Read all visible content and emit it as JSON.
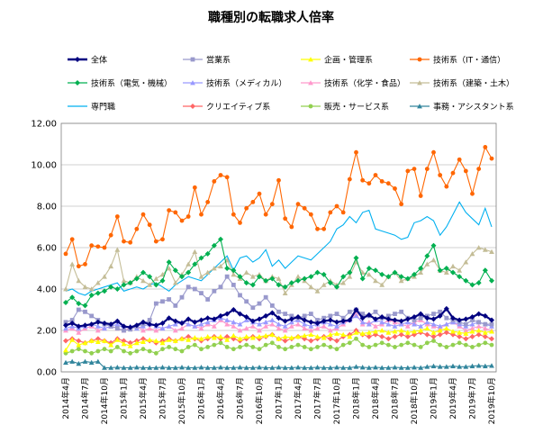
{
  "chart_data": {
    "type": "line",
    "title": "職種別の転職求人倍率",
    "xlabel": "",
    "ylabel": "",
    "ylim": [
      0,
      12
    ],
    "yticks": [
      "0.00",
      "2.00",
      "4.00",
      "6.00",
      "8.00",
      "10.00",
      "12.00"
    ],
    "grid": true,
    "legend_position": "top",
    "x": [
      "2014年4月",
      "2014年5月",
      "2014年6月",
      "2014年7月",
      "2014年8月",
      "2014年9月",
      "2014年10月",
      "2014年11月",
      "2014年12月",
      "2015年1月",
      "2015年2月",
      "2015年3月",
      "2015年4月",
      "2015年5月",
      "2015年6月",
      "2015年7月",
      "2015年8月",
      "2015年9月",
      "2015年10月",
      "2015年11月",
      "2015年12月",
      "2016年1月",
      "2016年2月",
      "2016年3月",
      "2016年4月",
      "2016年5月",
      "2016年6月",
      "2016年7月",
      "2016年8月",
      "2016年9月",
      "2016年10月",
      "2016年11月",
      "2016年12月",
      "2017年1月",
      "2017年2月",
      "2017年3月",
      "2017年4月",
      "2017年5月",
      "2017年6月",
      "2017年7月",
      "2017年8月",
      "2017年9月",
      "2017年10月",
      "2017年11月",
      "2017年12月",
      "2018年1月",
      "2018年2月",
      "2018年3月",
      "2018年4月",
      "2018年5月",
      "2018年6月",
      "2018年7月",
      "2018年8月",
      "2018年9月",
      "2018年10月",
      "2018年11月",
      "2018年12月",
      "2019年1月",
      "2019年2月",
      "2019年3月",
      "2019年4月",
      "2019年5月",
      "2019年6月",
      "2019年7月",
      "2019年8月",
      "2019年9月",
      "2019年10月"
    ],
    "x_tick_labels": [
      "2014年4月",
      "2014年7月",
      "2014年10月",
      "2015年1月",
      "2015年4月",
      "2015年7月",
      "2015年10月",
      "2016年1月",
      "2016年4月",
      "2016年7月",
      "2016年10月",
      "2017年1月",
      "2017年4月",
      "2017年7月",
      "2017年10月",
      "2018年1月",
      "2018年4月",
      "2018年7月",
      "2018年10月",
      "2019年1月",
      "2019年4月",
      "2019年7月",
      "2019年10月"
    ],
    "series": [
      {
        "name": "全体",
        "color": "#000080",
        "marker": "diamond",
        "width": 2.2,
        "values": [
          2.25,
          2.35,
          2.2,
          2.25,
          2.3,
          2.4,
          2.35,
          2.3,
          2.45,
          2.2,
          2.15,
          2.25,
          2.4,
          2.3,
          2.25,
          2.35,
          2.6,
          2.45,
          2.35,
          2.55,
          2.4,
          2.5,
          2.6,
          2.55,
          2.7,
          2.8,
          3.0,
          2.8,
          2.65,
          2.45,
          2.55,
          2.7,
          2.85,
          2.6,
          2.45,
          2.55,
          2.65,
          2.5,
          2.4,
          2.35,
          2.45,
          2.5,
          2.4,
          2.45,
          2.5,
          3.0,
          2.6,
          2.75,
          2.55,
          2.65,
          2.55,
          2.5,
          2.45,
          2.55,
          2.65,
          2.8,
          2.6,
          2.55,
          2.7,
          3.05,
          2.6,
          2.5,
          2.55,
          2.65,
          2.8,
          2.7,
          2.5
        ]
      },
      {
        "name": "営業系",
        "color": "#9999cc",
        "marker": "square",
        "width": 1,
        "values": [
          2.4,
          2.5,
          3.0,
          2.9,
          2.7,
          2.5,
          2.3,
          2.2,
          2.1,
          2.0,
          2.05,
          2.2,
          2.3,
          2.5,
          3.3,
          3.4,
          3.5,
          3.2,
          3.6,
          4.1,
          4.0,
          3.8,
          3.5,
          3.9,
          4.1,
          4.6,
          4.2,
          3.7,
          3.4,
          3.1,
          3.3,
          3.6,
          3.2,
          2.9,
          2.8,
          2.7,
          2.6,
          2.7,
          2.8,
          2.5,
          2.6,
          2.7,
          2.8,
          2.6,
          2.9,
          3.0,
          2.8,
          2.7,
          2.9,
          2.6,
          2.7,
          2.8,
          2.9,
          2.6,
          2.5,
          2.6,
          2.7,
          2.8,
          2.9,
          2.6,
          2.5,
          2.4,
          2.3,
          2.5,
          2.4,
          2.3,
          2.3
        ]
      },
      {
        "name": "企画・管理系",
        "color": "#ffff00",
        "marker": "triangle",
        "width": 1,
        "values": [
          1.05,
          1.55,
          1.3,
          1.4,
          1.5,
          1.45,
          1.5,
          1.3,
          1.55,
          1.35,
          1.25,
          1.4,
          1.45,
          1.55,
          1.5,
          1.4,
          1.55,
          1.5,
          1.6,
          1.55,
          1.65,
          1.6,
          1.7,
          1.65,
          1.7,
          1.55,
          1.75,
          1.6,
          1.7,
          1.65,
          1.7,
          1.75,
          1.8,
          1.6,
          1.7,
          1.65,
          1.7,
          1.75,
          1.8,
          1.7,
          1.65,
          1.8,
          1.85,
          1.8,
          1.7,
          1.9,
          1.85,
          1.9,
          1.95,
          2.0,
          1.9,
          1.95,
          2.0,
          1.9,
          1.95,
          2.0,
          2.1,
          1.9,
          2.0,
          2.1,
          1.95,
          1.9,
          1.85,
          1.95,
          2.0,
          1.9,
          1.95
        ]
      },
      {
        "name": "技術系（IT・通信）",
        "color": "#ff6600",
        "marker": "circle",
        "width": 1,
        "values": [
          5.7,
          6.4,
          5.1,
          5.2,
          6.1,
          6.05,
          6.0,
          6.6,
          7.5,
          6.3,
          6.25,
          6.9,
          7.6,
          7.1,
          6.3,
          6.4,
          7.8,
          7.7,
          7.3,
          7.5,
          8.9,
          7.6,
          8.2,
          9.2,
          9.5,
          9.4,
          7.6,
          7.2,
          7.9,
          8.2,
          8.6,
          7.6,
          8.1,
          9.25,
          7.4,
          7.0,
          8.1,
          7.9,
          7.6,
          6.9,
          6.9,
          7.7,
          8.0,
          7.7,
          9.3,
          10.6,
          9.25,
          9.1,
          9.5,
          9.2,
          9.1,
          8.85,
          8.1,
          9.7,
          9.8,
          8.5,
          9.8,
          10.6,
          9.5,
          8.95,
          9.6,
          10.25,
          9.7,
          8.6,
          9.8,
          10.85,
          10.3
        ]
      },
      {
        "name": "技術系（電気・機械）",
        "color": "#00b050",
        "marker": "diamond",
        "width": 1,
        "values": [
          3.35,
          3.6,
          3.3,
          3.2,
          3.7,
          3.8,
          3.9,
          4.1,
          4.0,
          4.2,
          4.3,
          4.5,
          4.8,
          4.6,
          4.2,
          4.4,
          5.3,
          4.9,
          4.6,
          4.8,
          5.2,
          5.5,
          5.7,
          6.1,
          6.4,
          5.0,
          4.9,
          4.6,
          4.3,
          4.2,
          4.6,
          4.4,
          4.5,
          4.2,
          4.1,
          4.3,
          4.4,
          4.5,
          4.6,
          4.8,
          4.7,
          4.3,
          4.1,
          4.6,
          4.8,
          5.5,
          4.5,
          5.0,
          4.9,
          4.7,
          4.6,
          4.8,
          4.6,
          4.5,
          4.7,
          5.0,
          5.6,
          6.1,
          4.9,
          5.0,
          4.8,
          4.6,
          4.4,
          4.2,
          4.3,
          4.9,
          4.4
        ]
      },
      {
        "name": "技術系（メディカル）",
        "color": "#9999ff",
        "marker": "triangle",
        "width": 1,
        "values": [
          2.1,
          2.2,
          2.1,
          2.2,
          2.3,
          2.2,
          2.1,
          2.2,
          2.3,
          2.1,
          2.2,
          2.1,
          2.2,
          2.3,
          2.2,
          2.1,
          2.2,
          2.3,
          2.4,
          2.3,
          2.2,
          2.3,
          2.4,
          2.5,
          2.6,
          2.5,
          2.4,
          2.3,
          2.5,
          2.4,
          2.3,
          2.4,
          2.5,
          2.3,
          2.2,
          2.4,
          2.5,
          2.3,
          2.2,
          2.3,
          2.4,
          2.3,
          2.2,
          2.4,
          2.5,
          2.7,
          2.4,
          2.3,
          2.5,
          2.4,
          2.3,
          2.2,
          2.3,
          2.4,
          2.3,
          2.2,
          2.4,
          2.3,
          2.2,
          2.3,
          2.4,
          2.3,
          2.2,
          2.3,
          2.4,
          2.3,
          2.2
        ]
      },
      {
        "name": "技術系（化学・食品）",
        "color": "#ff99cc",
        "marker": "triangle",
        "width": 1,
        "values": [
          2.0,
          2.1,
          1.9,
          2.1,
          2.2,
          2.0,
          2.1,
          2.2,
          2.1,
          2.0,
          2.1,
          2.2,
          2.0,
          2.1,
          2.0,
          2.1,
          2.2,
          2.0,
          2.1,
          2.3,
          2.2,
          2.1,
          2.3,
          2.2,
          2.5,
          2.3,
          2.2,
          2.0,
          2.1,
          2.2,
          2.0,
          2.2,
          2.3,
          2.1,
          2.0,
          2.2,
          2.3,
          2.1,
          2.0,
          2.1,
          2.2,
          2.0,
          2.1,
          2.3,
          2.5,
          2.8,
          2.3,
          2.4,
          2.2,
          2.3,
          2.5,
          2.4,
          2.3,
          2.2,
          2.4,
          2.5,
          2.3,
          2.2,
          2.1,
          2.3,
          2.4,
          2.2,
          2.0,
          2.1,
          2.2,
          2.1,
          2.0
        ]
      },
      {
        "name": "技術系（建築・土木）",
        "color": "#c4bd97",
        "marker": "triangle",
        "width": 1,
        "values": [
          4.0,
          5.2,
          4.4,
          4.1,
          4.0,
          4.3,
          4.6,
          5.1,
          5.9,
          4.4,
          4.3,
          4.6,
          4.4,
          4.2,
          4.5,
          4.7,
          5.0,
          4.3,
          4.7,
          5.2,
          5.8,
          4.6,
          4.8,
          5.0,
          5.1,
          5.4,
          4.7,
          4.5,
          4.8,
          4.6,
          4.7,
          4.4,
          4.6,
          4.5,
          3.8,
          4.2,
          4.6,
          4.4,
          4.1,
          3.9,
          4.2,
          4.4,
          4.2,
          4.3,
          4.6,
          5.3,
          4.8,
          4.7,
          4.4,
          4.2,
          4.6,
          4.8,
          4.4,
          4.5,
          4.6,
          4.8,
          5.2,
          5.4,
          4.9,
          4.8,
          5.1,
          4.9,
          5.3,
          5.7,
          6.0,
          5.9,
          5.8
        ]
      },
      {
        "name": "専門職",
        "color": "#00b0f0",
        "marker": "line",
        "width": 1,
        "values": [
          3.9,
          4.0,
          3.8,
          3.7,
          3.9,
          4.0,
          4.1,
          4.2,
          4.3,
          3.9,
          4.0,
          4.1,
          4.0,
          4.2,
          4.3,
          4.1,
          3.9,
          4.2,
          4.4,
          4.6,
          4.5,
          4.4,
          4.7,
          5.0,
          5.3,
          5.6,
          4.9,
          5.5,
          5.6,
          5.3,
          5.5,
          5.9,
          5.1,
          5.4,
          5.0,
          5.3,
          5.6,
          5.5,
          5.4,
          5.7,
          6.0,
          6.3,
          6.9,
          7.1,
          7.5,
          7.2,
          7.7,
          7.8,
          6.9,
          6.8,
          6.7,
          6.6,
          6.4,
          6.5,
          7.2,
          7.3,
          7.5,
          7.3,
          6.6,
          7.0,
          7.6,
          8.2,
          7.7,
          7.4,
          7.1,
          7.9,
          7.0
        ]
      },
      {
        "name": "クリエイティブ系",
        "color": "#ff6666",
        "marker": "diamond",
        "width": 1,
        "values": [
          1.5,
          1.6,
          1.5,
          1.4,
          1.5,
          1.6,
          1.5,
          1.4,
          1.6,
          1.5,
          1.4,
          1.5,
          1.6,
          1.5,
          1.4,
          1.5,
          1.6,
          1.5,
          1.6,
          1.7,
          1.6,
          1.5,
          1.6,
          1.7,
          1.6,
          1.7,
          1.6,
          1.5,
          1.6,
          1.7,
          1.6,
          1.7,
          1.8,
          1.6,
          1.5,
          1.6,
          1.7,
          1.6,
          1.5,
          1.6,
          1.7,
          1.6,
          1.5,
          1.7,
          1.8,
          2.0,
          1.8,
          1.7,
          1.8,
          1.7,
          1.6,
          1.7,
          1.8,
          1.7,
          1.8,
          1.9,
          1.8,
          1.7,
          1.8,
          1.9,
          1.8,
          1.7,
          1.6,
          1.7,
          1.8,
          1.7,
          1.6
        ]
      },
      {
        "name": "販売・サービス系",
        "color": "#92d050",
        "marker": "circle",
        "width": 1,
        "values": [
          0.9,
          1.0,
          1.1,
          1.0,
          0.9,
          1.0,
          1.1,
          1.0,
          1.2,
          1.0,
          0.9,
          1.0,
          1.1,
          1.0,
          0.9,
          1.1,
          1.2,
          1.1,
          1.0,
          1.2,
          1.3,
          1.1,
          1.2,
          1.3,
          1.4,
          1.2,
          1.1,
          1.2,
          1.3,
          1.2,
          1.1,
          1.3,
          1.4,
          1.2,
          1.1,
          1.2,
          1.3,
          1.2,
          1.1,
          1.2,
          1.3,
          1.2,
          1.1,
          1.3,
          1.4,
          1.6,
          1.3,
          1.2,
          1.3,
          1.4,
          1.3,
          1.2,
          1.3,
          1.4,
          1.3,
          1.2,
          1.4,
          1.5,
          1.3,
          1.2,
          1.3,
          1.4,
          1.3,
          1.2,
          1.3,
          1.4,
          1.3
        ]
      },
      {
        "name": "事務・アシスタント系",
        "color": "#31859c",
        "marker": "triangle",
        "width": 1,
        "values": [
          0.45,
          0.5,
          0.4,
          0.5,
          0.45,
          0.5,
          0.2,
          0.2,
          0.22,
          0.2,
          0.2,
          0.22,
          0.2,
          0.2,
          0.2,
          0.22,
          0.2,
          0.2,
          0.22,
          0.2,
          0.2,
          0.22,
          0.2,
          0.2,
          0.22,
          0.2,
          0.2,
          0.22,
          0.2,
          0.2,
          0.22,
          0.2,
          0.2,
          0.22,
          0.2,
          0.2,
          0.22,
          0.2,
          0.2,
          0.22,
          0.2,
          0.2,
          0.22,
          0.2,
          0.2,
          0.25,
          0.22,
          0.2,
          0.22,
          0.2,
          0.2,
          0.22,
          0.2,
          0.2,
          0.22,
          0.2,
          0.25,
          0.28,
          0.25,
          0.25,
          0.28,
          0.25,
          0.25,
          0.28,
          0.3,
          0.28,
          0.3
        ]
      }
    ]
  }
}
